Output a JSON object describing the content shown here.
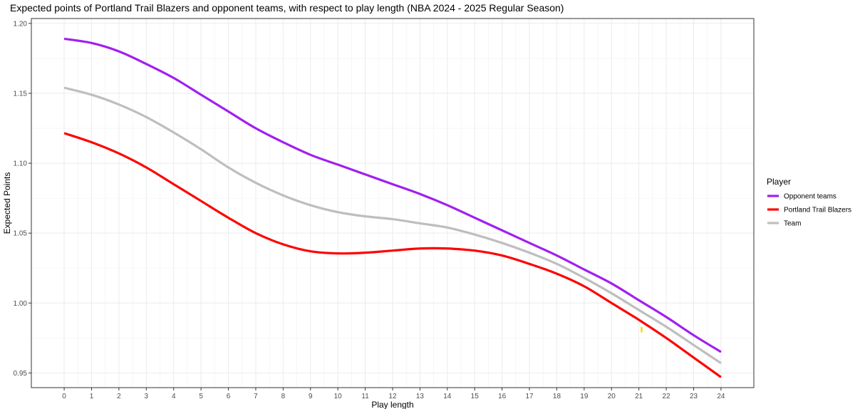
{
  "chart_data": {
    "type": "line",
    "title": "Expected points of Portland Trail Blazers and opponent teams, with respect to play length (NBA 2024 - 2025 Regular Season)",
    "xlabel": "Play length",
    "ylabel": "Expected Points",
    "xlim": [
      -1.2,
      25.2
    ],
    "ylim": [
      0.9395,
      1.2035
    ],
    "x_ticks": [
      0,
      1,
      2,
      3,
      4,
      5,
      6,
      7,
      8,
      9,
      10,
      11,
      12,
      13,
      14,
      15,
      16,
      17,
      18,
      19,
      20,
      21,
      22,
      23,
      24
    ],
    "y_ticks": [
      0.95,
      1.0,
      1.05,
      1.1,
      1.15,
      1.2
    ],
    "y_tick_labels": [
      "0.95",
      "1.00",
      "1.05",
      "1.10",
      "1.15",
      "1.20"
    ],
    "grid": true,
    "legend": {
      "title": "Player",
      "position": "right"
    },
    "x": [
      0,
      1,
      2,
      3,
      4,
      5,
      6,
      7,
      8,
      9,
      10,
      11,
      12,
      13,
      14,
      15,
      16,
      17,
      18,
      19,
      20,
      21,
      22,
      23,
      24
    ],
    "series": [
      {
        "name": "Opponent teams",
        "color": "#a020f0",
        "values": [
          1.189,
          1.186,
          1.18,
          1.171,
          1.161,
          1.149,
          1.137,
          1.125,
          1.115,
          1.106,
          1.099,
          1.092,
          1.085,
          1.078,
          1.07,
          1.061,
          1.052,
          1.043,
          1.034,
          1.024,
          1.014,
          1.002,
          0.99,
          0.977,
          0.965
        ]
      },
      {
        "name": "Portland Trail Blazers",
        "color": "#ff0000",
        "values": [
          1.1215,
          1.115,
          1.107,
          1.097,
          1.085,
          1.073,
          1.061,
          1.05,
          1.042,
          1.037,
          1.0355,
          1.036,
          1.0375,
          1.039,
          1.039,
          1.0375,
          1.034,
          1.028,
          1.021,
          1.012,
          1.0,
          0.988,
          0.975,
          0.961,
          0.947
        ]
      },
      {
        "name": "Team",
        "color": "#bebebe",
        "values": [
          1.154,
          1.149,
          1.142,
          1.133,
          1.122,
          1.11,
          1.097,
          1.086,
          1.077,
          1.07,
          1.065,
          1.062,
          1.06,
          1.057,
          1.054,
          1.049,
          1.043,
          1.036,
          1.028,
          1.018,
          1.007,
          0.995,
          0.983,
          0.97,
          0.957
        ]
      }
    ],
    "annotation_mark": {
      "color": "#ffd700",
      "x": 21.1,
      "y_range": [
        0.979,
        0.983
      ]
    }
  }
}
